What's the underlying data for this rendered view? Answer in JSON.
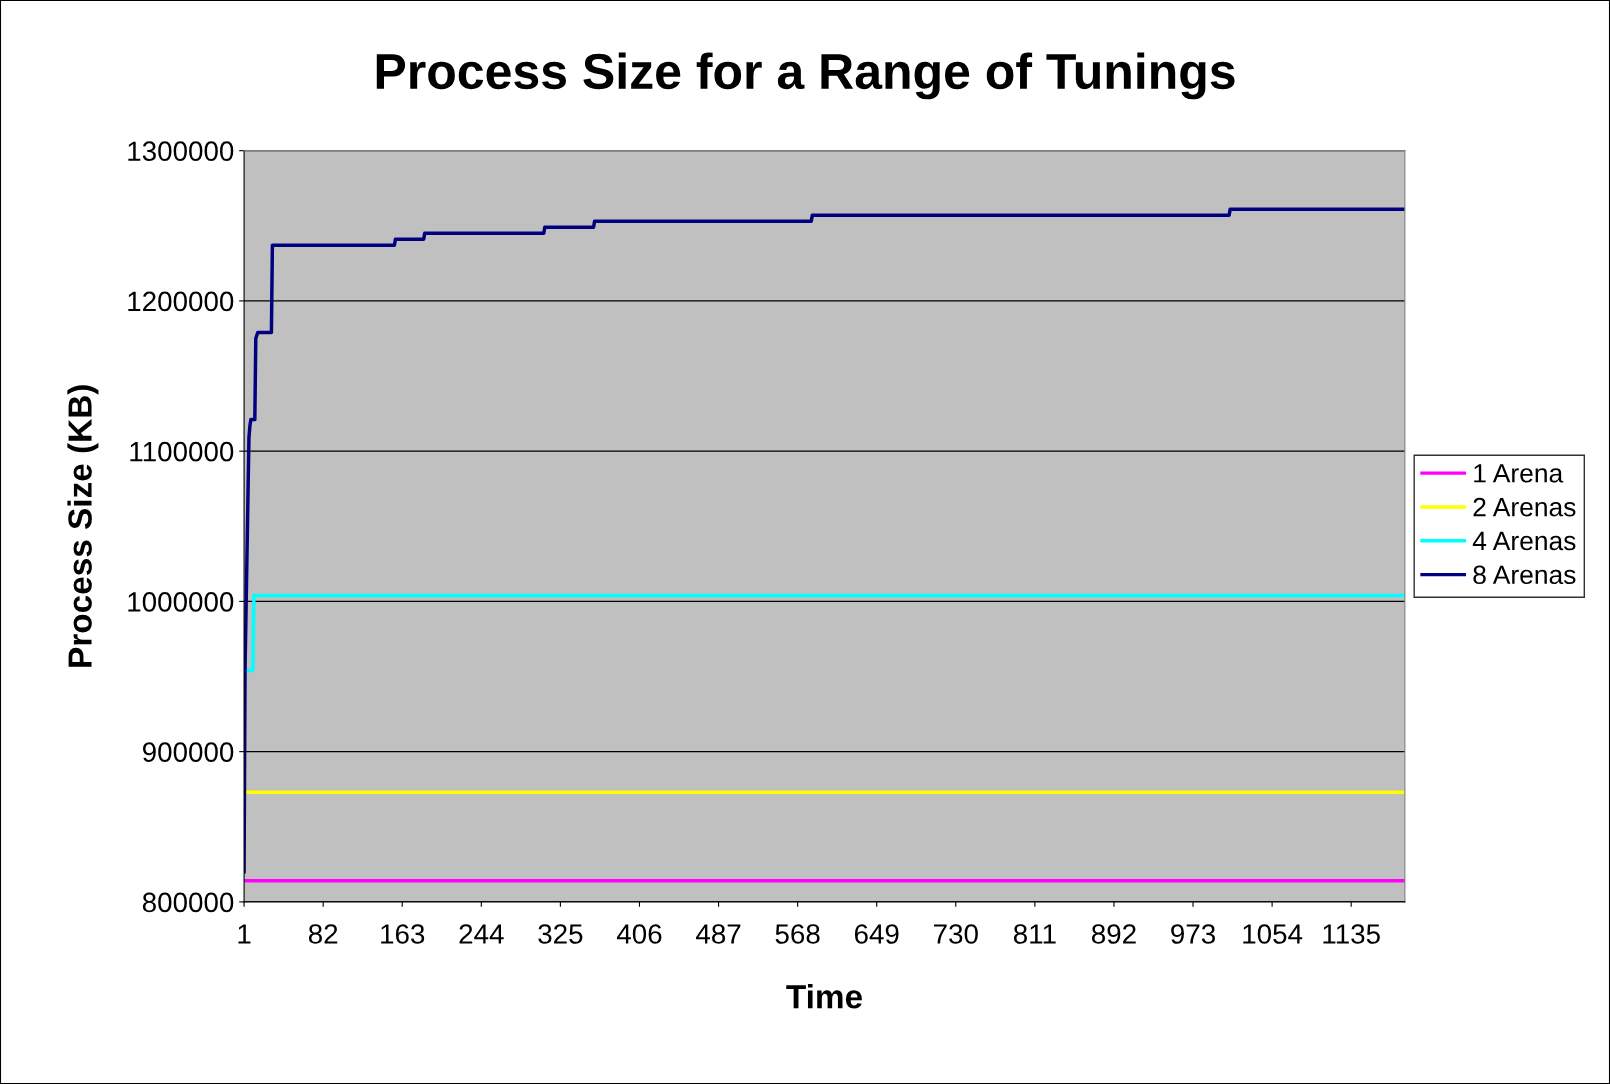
{
  "chart_data": {
    "type": "line",
    "title": "Process Size for a Range of Tunings",
    "xlabel": "Time",
    "ylabel": "Process Size (KB)",
    "xlim": [
      1,
      1190
    ],
    "xticks": [
      1,
      82,
      163,
      244,
      325,
      406,
      487,
      568,
      649,
      730,
      811,
      892,
      973,
      1054,
      1135
    ],
    "ylim": [
      800000,
      1300000
    ],
    "yticks": [
      800000,
      900000,
      1000000,
      1100000,
      1200000,
      1300000
    ],
    "grid": "y",
    "legend": "right",
    "marker": "none",
    "line_style": "solid",
    "series": [
      {
        "name": "1 Arena",
        "color": "#ff00ff",
        "x": [
          1,
          1190
        ],
        "values": [
          814000,
          814000
        ]
      },
      {
        "name": "2 Arenas",
        "color": "#ffff00",
        "x": [
          3,
          1190
        ],
        "values": [
          873000,
          873000
        ]
      },
      {
        "name": "4 Arenas",
        "color": "#00ffff",
        "x": [
          2,
          10,
          11,
          1190
        ],
        "values": [
          954000,
          954000,
          1004000,
          1004000
        ]
      },
      {
        "name": "8 Arenas",
        "color": "#000080",
        "x": [
          1,
          2,
          6,
          7,
          8,
          12,
          13,
          15,
          29,
          30,
          155,
          156,
          185,
          186,
          308,
          309,
          359,
          360,
          582,
          583,
          1010,
          1011,
          1190
        ],
        "values": [
          820000,
          955000,
          1109000,
          1117000,
          1121000,
          1121000,
          1175000,
          1179000,
          1179000,
          1237000,
          1237000,
          1241000,
          1241000,
          1245000,
          1245000,
          1249000,
          1249000,
          1253000,
          1253000,
          1257000,
          1257000,
          1261000,
          1261000
        ]
      }
    ]
  }
}
